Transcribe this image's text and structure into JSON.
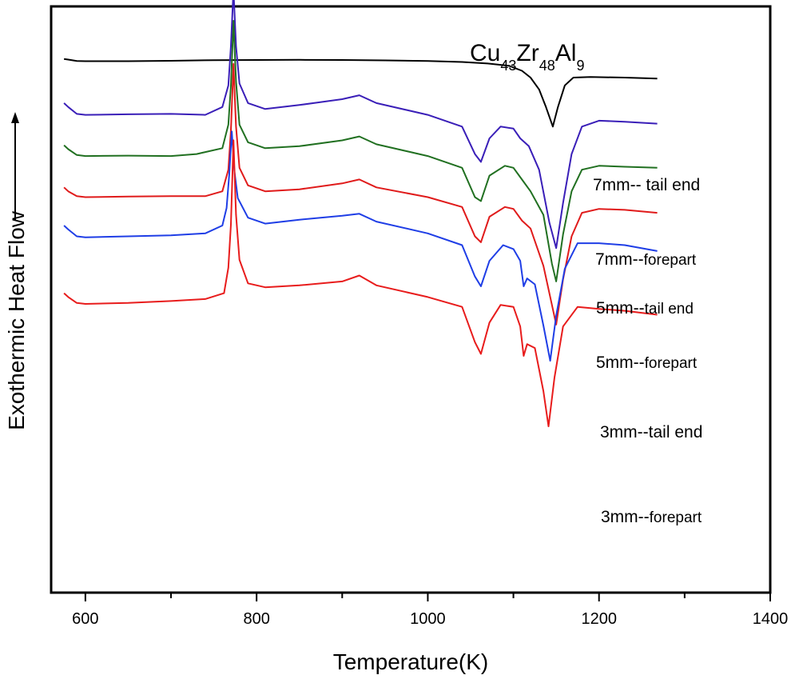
{
  "chart_data": {
    "type": "line",
    "title": {
      "base": "Cu",
      "sub1": "43",
      "mid1": "Zr",
      "sub2": "48",
      "mid2": "Al",
      "sub3": "9"
    },
    "xlabel": "Temperature(K)",
    "ylabel": "Exothermic Heat Flow",
    "xlim": [
      560,
      1400
    ],
    "x_ticks": [
      "600",
      "800",
      "1000",
      "1200",
      "1400"
    ],
    "y_ticks": [],
    "grid": false,
    "series": [
      {
        "name": "7mm-- tail end",
        "label_main": "7mm-- tail end",
        "label_small": "",
        "color": "#000000",
        "offset": 0.9,
        "points": [
          [
            575,
            0.95
          ],
          [
            580,
            0.92
          ],
          [
            590,
            0.85
          ],
          [
            600,
            0.84
          ],
          [
            650,
            0.84
          ],
          [
            700,
            0.86
          ],
          [
            750,
            0.89
          ],
          [
            800,
            0.9
          ],
          [
            850,
            0.91
          ],
          [
            900,
            0.9
          ],
          [
            950,
            0.88
          ],
          [
            1000,
            0.85
          ],
          [
            1040,
            0.8
          ],
          [
            1070,
            0.72
          ],
          [
            1095,
            0.6
          ],
          [
            1110,
            0.35
          ],
          [
            1120,
            0.0
          ],
          [
            1130,
            -0.6
          ],
          [
            1138,
            -1.5
          ],
          [
            1146,
            -2.5
          ],
          [
            1152,
            -1.5
          ],
          [
            1160,
            -0.4
          ],
          [
            1170,
            0.0
          ],
          [
            1190,
            0.03
          ],
          [
            1230,
            0.0
          ],
          [
            1268,
            -0.05
          ]
        ]
      },
      {
        "name": "7mm--forepart",
        "label_main": "7mm--",
        "label_small": "forepart",
        "color": "#3a1fb8",
        "offset": 2.8,
        "points": [
          [
            575,
            0.6
          ],
          [
            580,
            0.4
          ],
          [
            590,
            0.05
          ],
          [
            600,
            0.0
          ],
          [
            650,
            0.03
          ],
          [
            700,
            0.05
          ],
          [
            740,
            0.0
          ],
          [
            760,
            0.4
          ],
          [
            767,
            1.5
          ],
          [
            770,
            3.5
          ],
          [
            773,
            6.4
          ],
          [
            776,
            3.5
          ],
          [
            780,
            1.6
          ],
          [
            790,
            0.6
          ],
          [
            810,
            0.3
          ],
          [
            850,
            0.5
          ],
          [
            900,
            0.8
          ],
          [
            920,
            1.0
          ],
          [
            940,
            0.6
          ],
          [
            1000,
            0.0
          ],
          [
            1040,
            -0.6
          ],
          [
            1055,
            -2.0
          ],
          [
            1062,
            -2.4
          ],
          [
            1072,
            -1.2
          ],
          [
            1085,
            -0.6
          ],
          [
            1100,
            -0.7
          ],
          [
            1108,
            -1.2
          ],
          [
            1118,
            -1.6
          ],
          [
            1130,
            -2.8
          ],
          [
            1142,
            -5.5
          ],
          [
            1150,
            -6.8
          ],
          [
            1158,
            -4.5
          ],
          [
            1168,
            -2.0
          ],
          [
            1180,
            -0.6
          ],
          [
            1200,
            -0.3
          ],
          [
            1230,
            -0.35
          ],
          [
            1268,
            -0.45
          ]
        ]
      },
      {
        "name": "5mm--tail end",
        "label_main": "5mm--",
        "label_small": "tail end",
        "color": "#217021",
        "offset": 4.9,
        "points": [
          [
            575,
            0.55
          ],
          [
            580,
            0.35
          ],
          [
            590,
            0.05
          ],
          [
            600,
            0.0
          ],
          [
            650,
            0.02
          ],
          [
            700,
            0.0
          ],
          [
            730,
            0.1
          ],
          [
            760,
            0.4
          ],
          [
            767,
            1.6
          ],
          [
            770,
            3.6
          ],
          [
            773,
            6.9
          ],
          [
            776,
            3.8
          ],
          [
            780,
            1.6
          ],
          [
            790,
            0.7
          ],
          [
            810,
            0.4
          ],
          [
            850,
            0.5
          ],
          [
            900,
            0.8
          ],
          [
            920,
            1.0
          ],
          [
            940,
            0.6
          ],
          [
            1000,
            0.0
          ],
          [
            1040,
            -0.6
          ],
          [
            1055,
            -2.1
          ],
          [
            1062,
            -2.3
          ],
          [
            1072,
            -1.0
          ],
          [
            1090,
            -0.5
          ],
          [
            1100,
            -0.6
          ],
          [
            1110,
            -1.2
          ],
          [
            1120,
            -1.8
          ],
          [
            1135,
            -3.0
          ],
          [
            1145,
            -5.5
          ],
          [
            1150,
            -6.4
          ],
          [
            1158,
            -4.0
          ],
          [
            1168,
            -1.8
          ],
          [
            1180,
            -0.7
          ],
          [
            1200,
            -0.5
          ],
          [
            1230,
            -0.55
          ],
          [
            1268,
            -0.6
          ]
        ]
      },
      {
        "name": "5mm-- forepart",
        "label_main": "5mm--",
        "label_small": "forepart",
        "color": "#e01b1b",
        "offset": 7.0,
        "points": [
          [
            575,
            0.5
          ],
          [
            580,
            0.3
          ],
          [
            590,
            0.05
          ],
          [
            600,
            0.0
          ],
          [
            650,
            0.03
          ],
          [
            700,
            0.05
          ],
          [
            740,
            0.05
          ],
          [
            760,
            0.3
          ],
          [
            767,
            1.4
          ],
          [
            770,
            3.4
          ],
          [
            773,
            6.8
          ],
          [
            776,
            3.6
          ],
          [
            780,
            1.5
          ],
          [
            790,
            0.6
          ],
          [
            810,
            0.3
          ],
          [
            850,
            0.4
          ],
          [
            900,
            0.7
          ],
          [
            920,
            0.9
          ],
          [
            940,
            0.5
          ],
          [
            1000,
            0.0
          ],
          [
            1040,
            -0.5
          ],
          [
            1055,
            -2.0
          ],
          [
            1062,
            -2.3
          ],
          [
            1072,
            -1.0
          ],
          [
            1090,
            -0.5
          ],
          [
            1100,
            -0.6
          ],
          [
            1110,
            -1.2
          ],
          [
            1120,
            -1.6
          ],
          [
            1135,
            -3.5
          ],
          [
            1145,
            -5.5
          ],
          [
            1150,
            -6.5
          ],
          [
            1158,
            -4.2
          ],
          [
            1168,
            -2.0
          ],
          [
            1180,
            -0.8
          ],
          [
            1200,
            -0.6
          ],
          [
            1230,
            -0.65
          ],
          [
            1268,
            -0.8
          ]
        ]
      },
      {
        "name": "3mm--tail end",
        "label_main": "3mm--tail end",
        "label_small": "",
        "color": "#1f3ee6",
        "offset": 9.05,
        "points": [
          [
            575,
            0.6
          ],
          [
            580,
            0.4
          ],
          [
            590,
            0.05
          ],
          [
            600,
            0.0
          ],
          [
            650,
            0.05
          ],
          [
            700,
            0.1
          ],
          [
            740,
            0.2
          ],
          [
            760,
            0.6
          ],
          [
            765,
            1.5
          ],
          [
            768,
            3.2
          ],
          [
            771,
            5.4
          ],
          [
            774,
            3.4
          ],
          [
            778,
            2.0
          ],
          [
            790,
            1.0
          ],
          [
            810,
            0.7
          ],
          [
            850,
            0.9
          ],
          [
            900,
            1.1
          ],
          [
            920,
            1.2
          ],
          [
            940,
            0.8
          ],
          [
            1000,
            0.2
          ],
          [
            1040,
            -0.4
          ],
          [
            1055,
            -2.0
          ],
          [
            1062,
            -2.5
          ],
          [
            1072,
            -1.2
          ],
          [
            1088,
            -0.4
          ],
          [
            1100,
            -0.6
          ],
          [
            1108,
            -1.2
          ],
          [
            1112,
            -2.5
          ],
          [
            1116,
            -2.1
          ],
          [
            1125,
            -2.4
          ],
          [
            1135,
            -4.5
          ],
          [
            1143,
            -6.3
          ],
          [
            1150,
            -4.0
          ],
          [
            1160,
            -1.6
          ],
          [
            1175,
            -0.3
          ],
          [
            1200,
            -0.3
          ],
          [
            1230,
            -0.4
          ],
          [
            1268,
            -0.7
          ]
        ]
      },
      {
        "name": "3mm--forepart",
        "label_main": "3mm--",
        "label_small": "forepart",
        "color": "#e81c1c",
        "offset": 12.4,
        "points": [
          [
            575,
            0.5
          ],
          [
            580,
            0.3
          ],
          [
            590,
            0.0
          ],
          [
            600,
            -0.05
          ],
          [
            650,
            0.0
          ],
          [
            700,
            0.1
          ],
          [
            740,
            0.2
          ],
          [
            762,
            0.5
          ],
          [
            767,
            1.8
          ],
          [
            770,
            4.0
          ],
          [
            773,
            8.3
          ],
          [
            776,
            4.5
          ],
          [
            780,
            2.2
          ],
          [
            790,
            1.0
          ],
          [
            810,
            0.8
          ],
          [
            850,
            0.9
          ],
          [
            900,
            1.1
          ],
          [
            920,
            1.4
          ],
          [
            940,
            0.9
          ],
          [
            1000,
            0.3
          ],
          [
            1040,
            -0.2
          ],
          [
            1055,
            -2.0
          ],
          [
            1062,
            -2.6
          ],
          [
            1072,
            -1.0
          ],
          [
            1085,
            -0.1
          ],
          [
            1100,
            -0.2
          ],
          [
            1108,
            -1.2
          ],
          [
            1112,
            -2.7
          ],
          [
            1116,
            -2.1
          ],
          [
            1125,
            -2.3
          ],
          [
            1135,
            -4.5
          ],
          [
            1141,
            -6.3
          ],
          [
            1148,
            -3.8
          ],
          [
            1158,
            -1.2
          ],
          [
            1175,
            -0.2
          ],
          [
            1200,
            -0.3
          ],
          [
            1230,
            -0.4
          ],
          [
            1268,
            -0.6
          ]
        ]
      }
    ]
  }
}
